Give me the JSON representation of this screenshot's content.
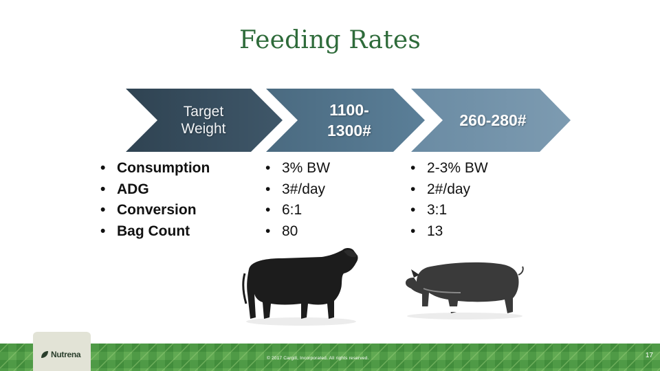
{
  "slide": {
    "title": "Feeding Rates",
    "columns": [
      {
        "header": "Target\nWeight",
        "items": [
          "Consumption",
          "ADG",
          "Conversion",
          "Bag Count"
        ]
      },
      {
        "header": "1100-\n1300#",
        "items": [
          "3% BW",
          "3#/day",
          "6:1",
          "80"
        ]
      },
      {
        "header": "260-280#",
        "items": [
          "2-3% BW",
          "2#/day",
          "3:1",
          "13"
        ]
      }
    ],
    "images": [
      "cow-illustration",
      "pig-illustration"
    ]
  },
  "footer": {
    "brand": "Nutrena",
    "copyright": "© 2017 Cargill, Incorporated. All rights reserved.",
    "page_number": "17"
  },
  "colors": {
    "title": "#2e6b3a",
    "chevron_dark": "#3e5567",
    "chevron_mid": "#557993",
    "chevron_light": "#7394ac",
    "footer_green": "#4f9a46"
  }
}
